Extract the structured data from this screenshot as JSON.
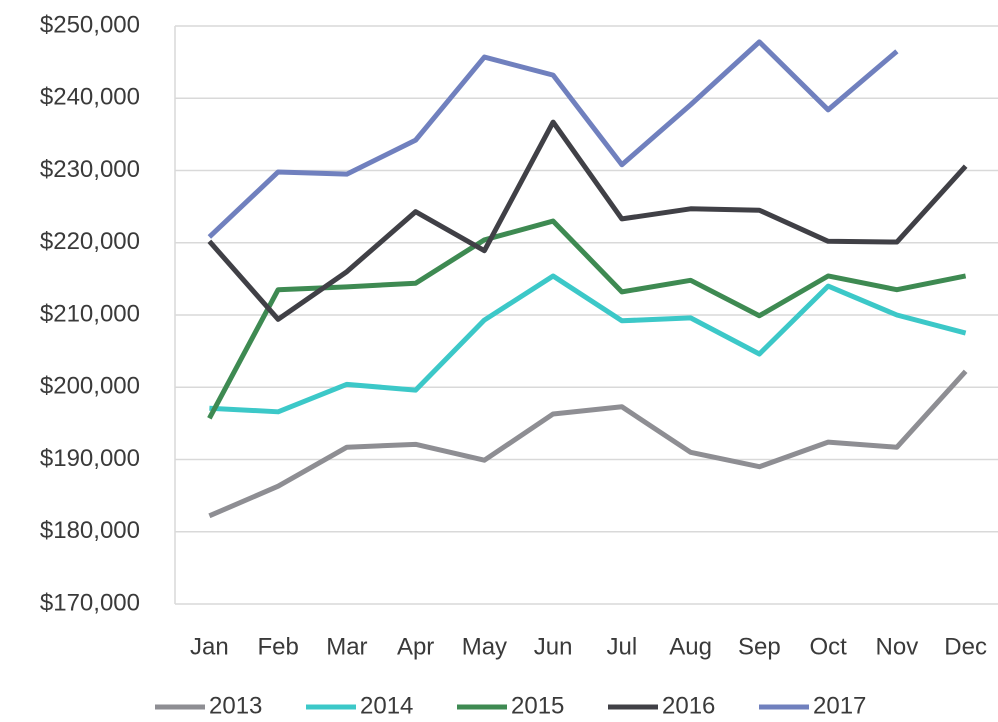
{
  "chart_data": {
    "type": "line",
    "categories": [
      "Jan",
      "Feb",
      "Mar",
      "Apr",
      "May",
      "Jun",
      "Jul",
      "Aug",
      "Sep",
      "Oct",
      "Nov",
      "Dec"
    ],
    "series": [
      {
        "name": "2013",
        "color": "#8e8e93",
        "values": [
          182200,
          186300,
          191700,
          192100,
          189900,
          196300,
          197300,
          191000,
          189000,
          192400,
          191700,
          202200
        ]
      },
      {
        "name": "2014",
        "color": "#3cc8c8",
        "values": [
          197100,
          196600,
          200400,
          199600,
          209300,
          215400,
          209200,
          209600,
          204600,
          214000,
          210000,
          207500
        ]
      },
      {
        "name": "2015",
        "color": "#3e8a52",
        "values": [
          195700,
          213500,
          213900,
          214400,
          220400,
          223000,
          213200,
          214800,
          209900,
          215400,
          213500,
          215400
        ]
      },
      {
        "name": "2016",
        "color": "#404046",
        "values": [
          220200,
          209400,
          216000,
          224300,
          218900,
          236700,
          223300,
          224700,
          224500,
          220200,
          220100,
          230600
        ]
      },
      {
        "name": "2017",
        "color": "#7080be",
        "values": [
          220800,
          229800,
          229500,
          234200,
          245700,
          243200,
          230800,
          239100,
          247800,
          238400,
          246500,
          null
        ]
      }
    ],
    "ylim": [
      170000,
      250000
    ],
    "yticks": [
      {
        "value": 170000,
        "label": "$170,000"
      },
      {
        "value": 180000,
        "label": "$180,000"
      },
      {
        "value": 190000,
        "label": "$190,000"
      },
      {
        "value": 200000,
        "label": "$200,000"
      },
      {
        "value": 210000,
        "label": "$210,000"
      },
      {
        "value": 220000,
        "label": "$220,000"
      },
      {
        "value": 230000,
        "label": "$230,000"
      },
      {
        "value": 240000,
        "label": "$240,000"
      },
      {
        "value": 250000,
        "label": "$250,000"
      }
    ],
    "grid": true,
    "legend": "bottom"
  }
}
